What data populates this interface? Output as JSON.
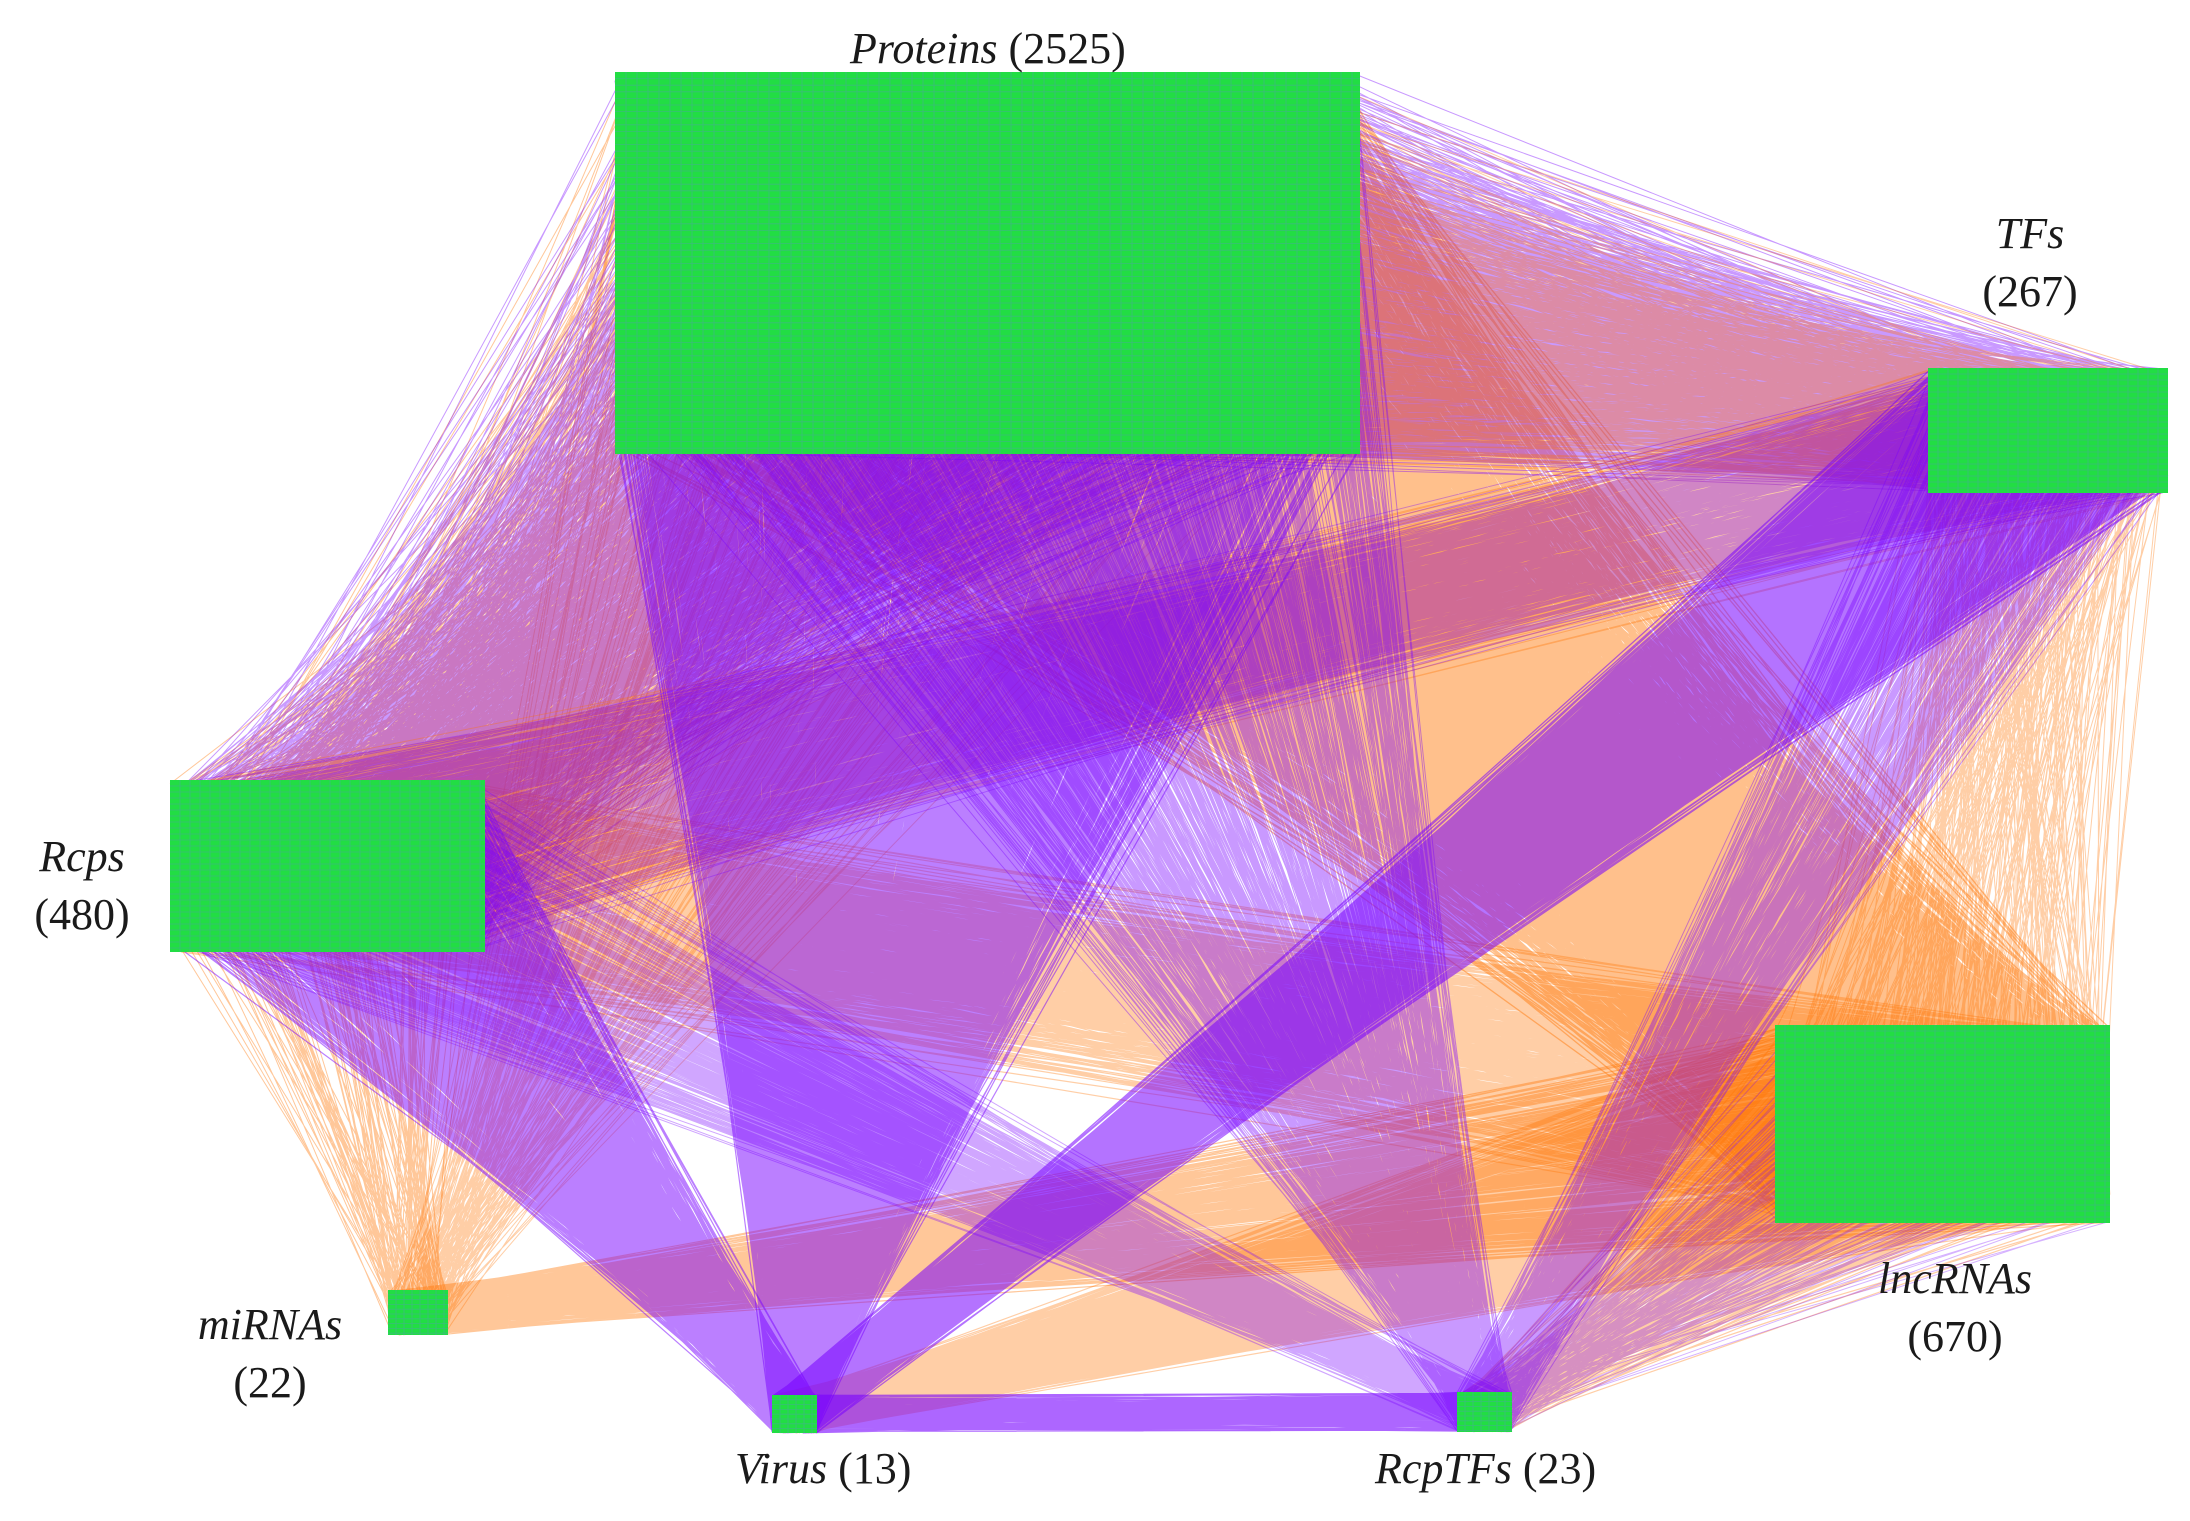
{
  "colors": {
    "node_fill": "#22dd44",
    "node_grid": "#6a7fe0",
    "edge_violet": "#7700ff",
    "edge_orange": "#ff7400",
    "label": "#1a1a1a"
  },
  "groups": [
    {
      "id": "proteins",
      "name": "Proteins",
      "count": "(2525)"
    },
    {
      "id": "tfs",
      "name": "TFs",
      "count": "(267)"
    },
    {
      "id": "rcps",
      "name": "Rcps",
      "count": "(480)"
    },
    {
      "id": "lncrnas",
      "name": "lncRNAs",
      "count": "(670)"
    },
    {
      "id": "mirnas",
      "name": "miRNAs",
      "count": "(22)"
    },
    {
      "id": "virus",
      "name": "Virus",
      "count": "(13)"
    },
    {
      "id": "rcptfs",
      "name": "RcpTFs",
      "count": "(23)"
    }
  ]
}
